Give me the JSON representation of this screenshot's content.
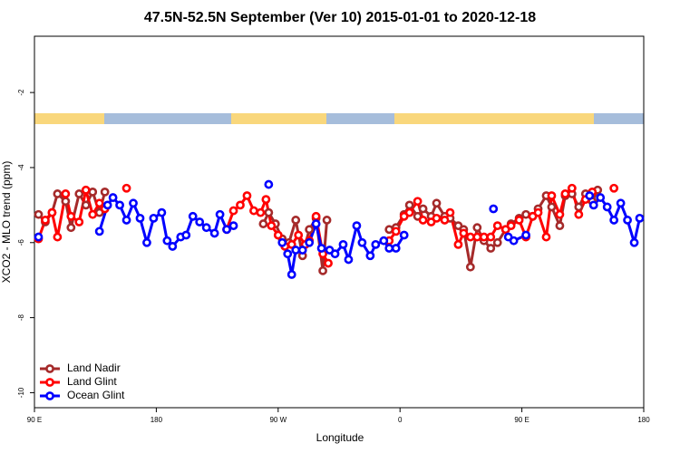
{
  "chart_data": {
    "type": "line",
    "title": "47.5N-52.5N September (Ver 10)   2015-01-01 to 2020-12-18",
    "x_label": "Longitude",
    "y_label": "XCO2 - MLO trend (ppm)",
    "xlim": [
      90,
      540
    ],
    "ylim": [
      -10.4,
      -0.5
    ],
    "xticks": [
      {
        "value": 90,
        "label": "90 E"
      },
      180,
      {
        "value": 270,
        "label": "90 W"
      },
      {
        "value": 360,
        "label": "0"
      },
      {
        "value": 450,
        "label": "90 E"
      },
      {
        "value": 540,
        "label": "180"
      }
    ],
    "yticks": [
      -2,
      -4,
      -6,
      -8,
      -10
    ],
    "legend": "bottom-left",
    "series": [
      {
        "name": "Land Nadir",
        "color": "#a52a2a",
        "x": [
          93,
          98,
          103,
          107,
          113,
          117,
          123,
          128,
          133,
          138,
          142,
          200,
          259,
          263,
          268,
          273,
          278,
          283,
          288,
          293,
          298,
          303,
          306,
          330,
          352,
          357,
          363,
          367,
          373,
          377,
          383,
          387,
          393,
          397,
          403,
          407,
          412,
          417,
          422,
          427,
          432,
          438,
          442,
          448,
          453,
          458,
          462,
          468,
          472,
          478,
          482,
          487,
          492,
          497,
          502,
          506
        ],
        "values": [
          -5.25,
          -5.45,
          -5.2,
          -4.7,
          -4.9,
          -5.6,
          -4.7,
          -5.0,
          -4.65,
          -5.2,
          -4.65,
          null,
          -5.5,
          -5.2,
          -5.5,
          -5.9,
          -6.0,
          -5.4,
          -6.35,
          -5.65,
          -5.35,
          -6.75,
          -5.4,
          null,
          -5.65,
          -5.6,
          -5.25,
          -5.0,
          -5.3,
          -5.1,
          -5.3,
          -4.95,
          -5.3,
          -5.35,
          -5.55,
          -5.65,
          -6.65,
          -5.6,
          -5.95,
          -6.15,
          -6.0,
          -5.65,
          -5.5,
          -5.35,
          -5.25,
          -5.3,
          -5.1,
          -4.75,
          -5.05,
          -5.55,
          -4.75,
          -4.7,
          -5.05,
          -4.7,
          -4.9,
          -4.6
        ]
      },
      {
        "name": "Land Glint",
        "color": "#ff0000",
        "x": [
          93,
          98,
          103,
          107,
          113,
          117,
          123,
          128,
          133,
          138,
          142,
          150,
          158,
          195,
          232,
          237,
          242,
          247,
          252,
          257,
          261,
          265,
          270,
          275,
          280,
          285,
          290,
          293,
          298,
          303,
          307,
          330,
          352,
          357,
          363,
          367,
          373,
          377,
          383,
          387,
          393,
          397,
          403,
          407,
          412,
          417,
          422,
          427,
          432,
          438,
          442,
          448,
          453,
          458,
          462,
          468,
          472,
          478,
          482,
          487,
          492,
          497,
          502,
          510,
          518
        ],
        "values": [
          -5.9,
          -5.4,
          -5.2,
          -5.85,
          -4.7,
          -5.3,
          -5.45,
          -4.6,
          -5.25,
          -4.95,
          -5.1,
          null,
          -4.55,
          null,
          -5.65,
          -5.15,
          -5.0,
          -4.75,
          -5.15,
          -5.2,
          -4.85,
          -5.55,
          -5.8,
          -6.1,
          -6.05,
          -5.8,
          -6.05,
          -5.95,
          -5.3,
          -6.3,
          -6.55,
          null,
          -5.95,
          -5.7,
          -5.3,
          -5.2,
          -4.9,
          -5.4,
          -5.45,
          -5.35,
          -5.4,
          -5.2,
          -6.05,
          -5.75,
          -5.85,
          -5.85,
          -5.85,
          -5.85,
          -5.55,
          -5.65,
          -5.55,
          -5.4,
          -5.85,
          -5.3,
          -5.2,
          -5.85,
          -4.75,
          -5.25,
          -4.7,
          -4.55,
          -5.25,
          -4.85,
          -4.65,
          null,
          -4.55
        ]
      },
      {
        "name": "Ocean Glint",
        "color": "#0000ff",
        "x": [
          93,
          115,
          138,
          144,
          148,
          153,
          158,
          163,
          168,
          173,
          178,
          184,
          188,
          192,
          198,
          202,
          207,
          212,
          217,
          223,
          227,
          232,
          237,
          250,
          263,
          268,
          273,
          277,
          280,
          283,
          288,
          293,
          298,
          302,
          308,
          312,
          318,
          322,
          328,
          332,
          338,
          342,
          348,
          352,
          357,
          363,
          395,
          429,
          435,
          440,
          444,
          453,
          475,
          500,
          503,
          508,
          513,
          518,
          523,
          528,
          533,
          537
        ],
        "values": [
          -5.85,
          null,
          -5.7,
          -5.0,
          -4.8,
          -5.0,
          -5.4,
          -4.95,
          -5.35,
          -6.0,
          -5.35,
          -5.2,
          -5.95,
          -6.1,
          -5.85,
          -5.8,
          -5.3,
          -5.45,
          -5.6,
          -5.75,
          -5.25,
          -5.65,
          -5.55,
          null,
          -4.45,
          null,
          -6.0,
          -6.3,
          -6.85,
          -6.2,
          -6.2,
          -6.0,
          -5.5,
          -6.15,
          -6.2,
          -6.3,
          -6.05,
          -6.45,
          -5.55,
          -6.0,
          -6.35,
          -6.05,
          -5.95,
          -6.15,
          -6.15,
          -5.8,
          null,
          -5.1,
          null,
          -5.85,
          -5.95,
          -5.8,
          null,
          -4.75,
          -5.0,
          -4.8,
          -5.05,
          -5.4,
          -4.95,
          -5.4,
          -6.0,
          -5.35
        ]
      }
    ]
  }
}
